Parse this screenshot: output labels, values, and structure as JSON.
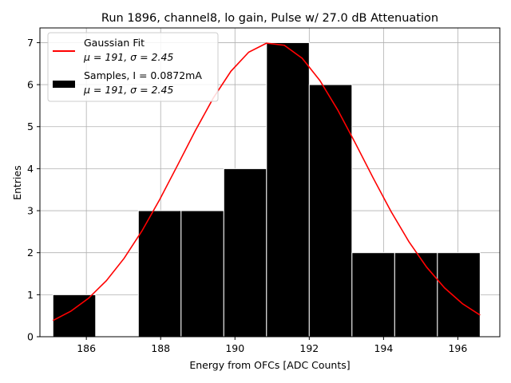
{
  "chart_data": {
    "type": "bar",
    "title": "Run 1896, channel8, lo gain, Pulse w/ 27.0 dB Attenuation",
    "xlabel": "Energy from OFCs [ADC Counts]",
    "ylabel": "Entries",
    "xlim": [
      184.75,
      197.13
    ],
    "ylim": [
      0,
      7.35
    ],
    "grid": true,
    "xticks": [
      186,
      188,
      190,
      192,
      194,
      196
    ],
    "yticks": [
      0,
      1,
      2,
      3,
      4,
      5,
      6,
      7
    ],
    "bins": [
      {
        "x0": 185.1,
        "x1": 186.25,
        "count": 1
      },
      {
        "x0": 186.25,
        "x1": 187.4,
        "count": 0
      },
      {
        "x0": 187.4,
        "x1": 188.55,
        "count": 3
      },
      {
        "x0": 188.55,
        "x1": 189.7,
        "count": 3
      },
      {
        "x0": 189.7,
        "x1": 190.85,
        "count": 4
      },
      {
        "x0": 190.85,
        "x1": 192.0,
        "count": 7
      },
      {
        "x0": 192.0,
        "x1": 193.15,
        "count": 6
      },
      {
        "x0": 193.15,
        "x1": 194.3,
        "count": 2
      },
      {
        "x0": 194.3,
        "x1": 195.45,
        "count": 2
      },
      {
        "x0": 195.45,
        "x1": 196.6,
        "count": 2
      }
    ],
    "fit": {
      "type": "gaussian",
      "amplitude": 7.0,
      "mean": 191.0,
      "sigma": 2.45,
      "x_range": [
        185.1,
        196.6
      ],
      "color": "#ff0000"
    },
    "bar_color": "#000000",
    "legend": {
      "placement": "top-left",
      "entries": [
        {
          "label_line1": "Gaussian Fit",
          "label_line2": "μ = 191, σ = 2.45",
          "marker": "line",
          "color": "#ff0000"
        },
        {
          "label_line1": "Samples, I = 0.0872mA",
          "label_line2": "μ = 191, σ = 2.45",
          "marker": "patch",
          "color": "#000000"
        }
      ]
    }
  }
}
